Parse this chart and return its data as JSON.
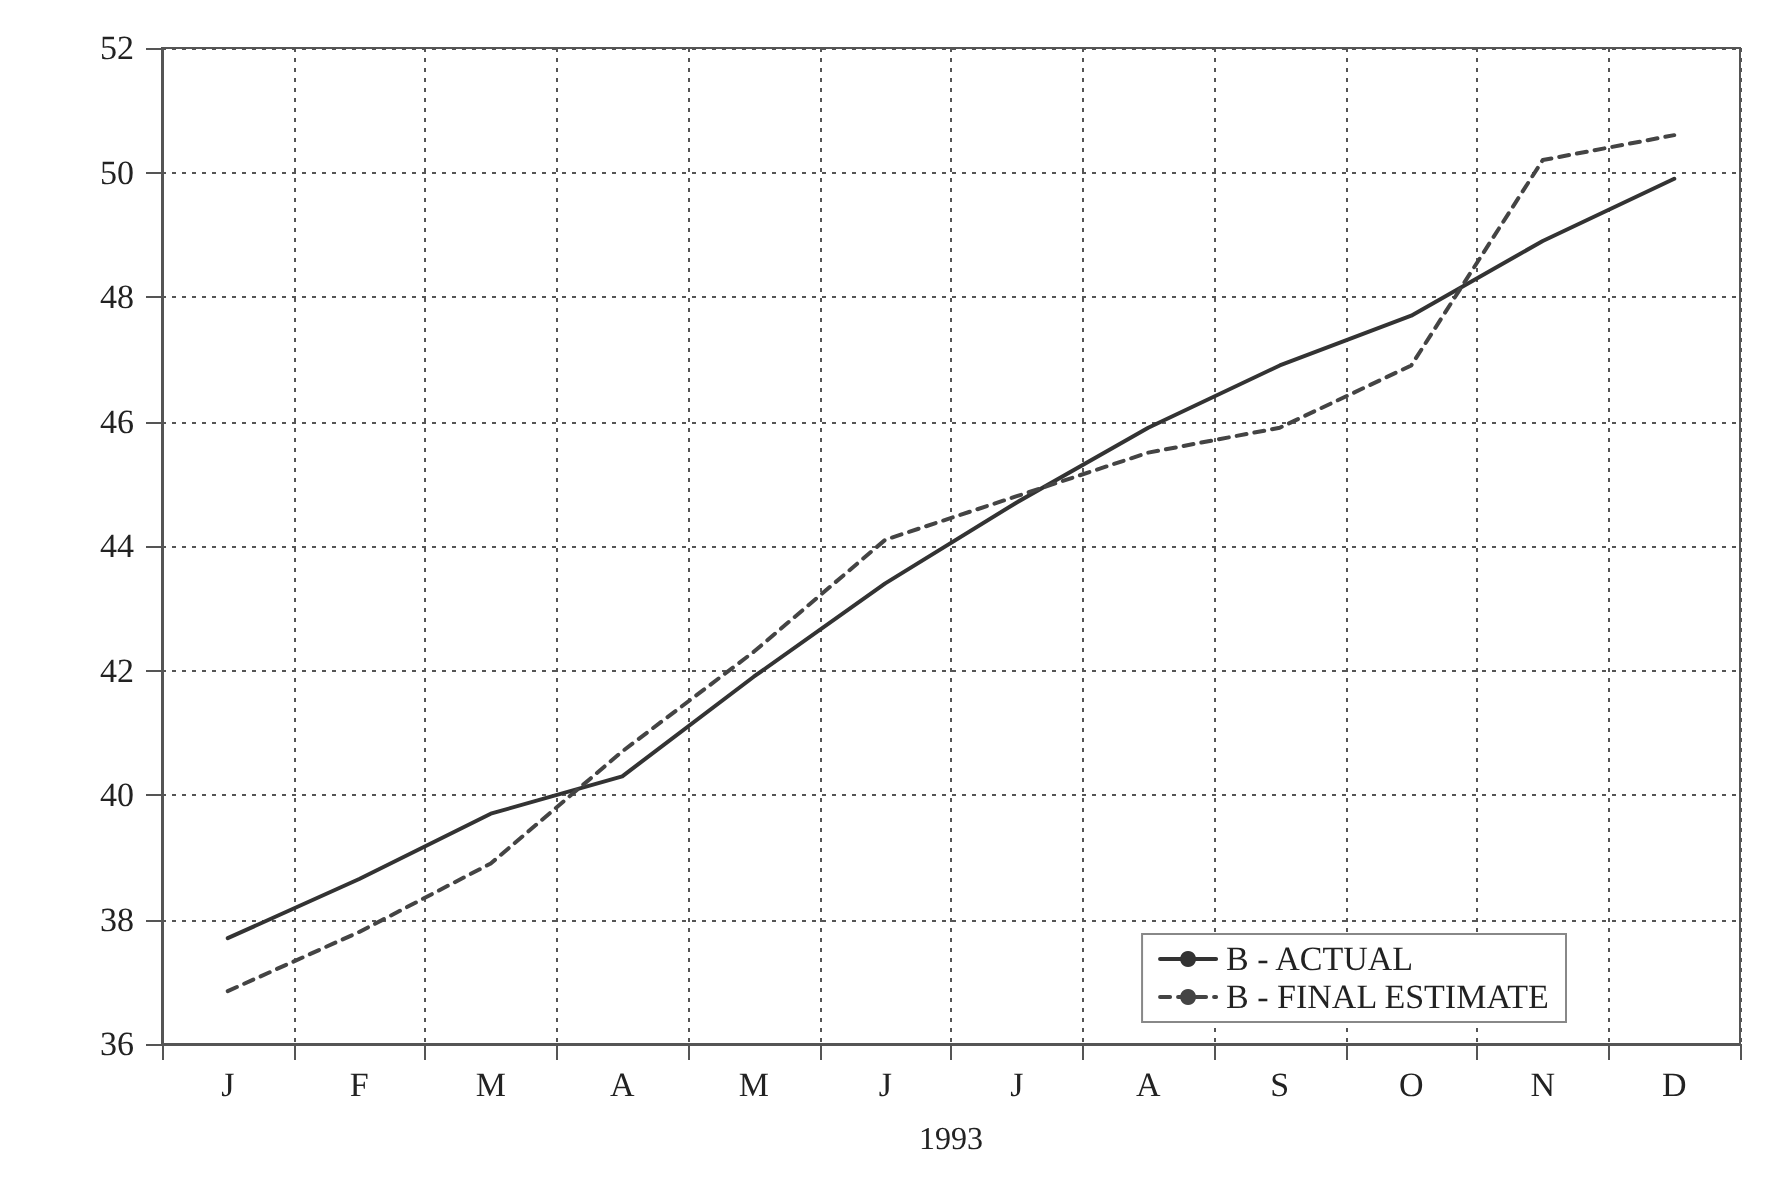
{
  "chart_data": {
    "type": "line",
    "xlabel": "1993",
    "categories": [
      "J",
      "F",
      "M",
      "A",
      "M",
      "J",
      "J",
      "A",
      "S",
      "O",
      "N",
      "D"
    ],
    "series": [
      {
        "name": "B - ACTUAL",
        "color": "#333333",
        "line_style": "solid",
        "values": [
          37.7,
          38.65,
          39.7,
          40.3,
          41.9,
          43.4,
          44.7,
          45.9,
          46.9,
          47.7,
          48.9,
          49.9
        ]
      },
      {
        "name": "B - FINAL ESTIMATE",
        "color": "#444444",
        "line_style": "dashed",
        "values": [
          36.85,
          37.8,
          38.9,
          40.7,
          42.3,
          44.1,
          44.8,
          45.5,
          45.9,
          46.9,
          50.2,
          50.6
        ]
      }
    ],
    "ylim": [
      36,
      52
    ],
    "yticks": [
      36,
      38,
      40,
      42,
      44,
      46,
      48,
      50,
      52
    ],
    "grid": true,
    "legend": "bottom right",
    "marker": "none"
  }
}
